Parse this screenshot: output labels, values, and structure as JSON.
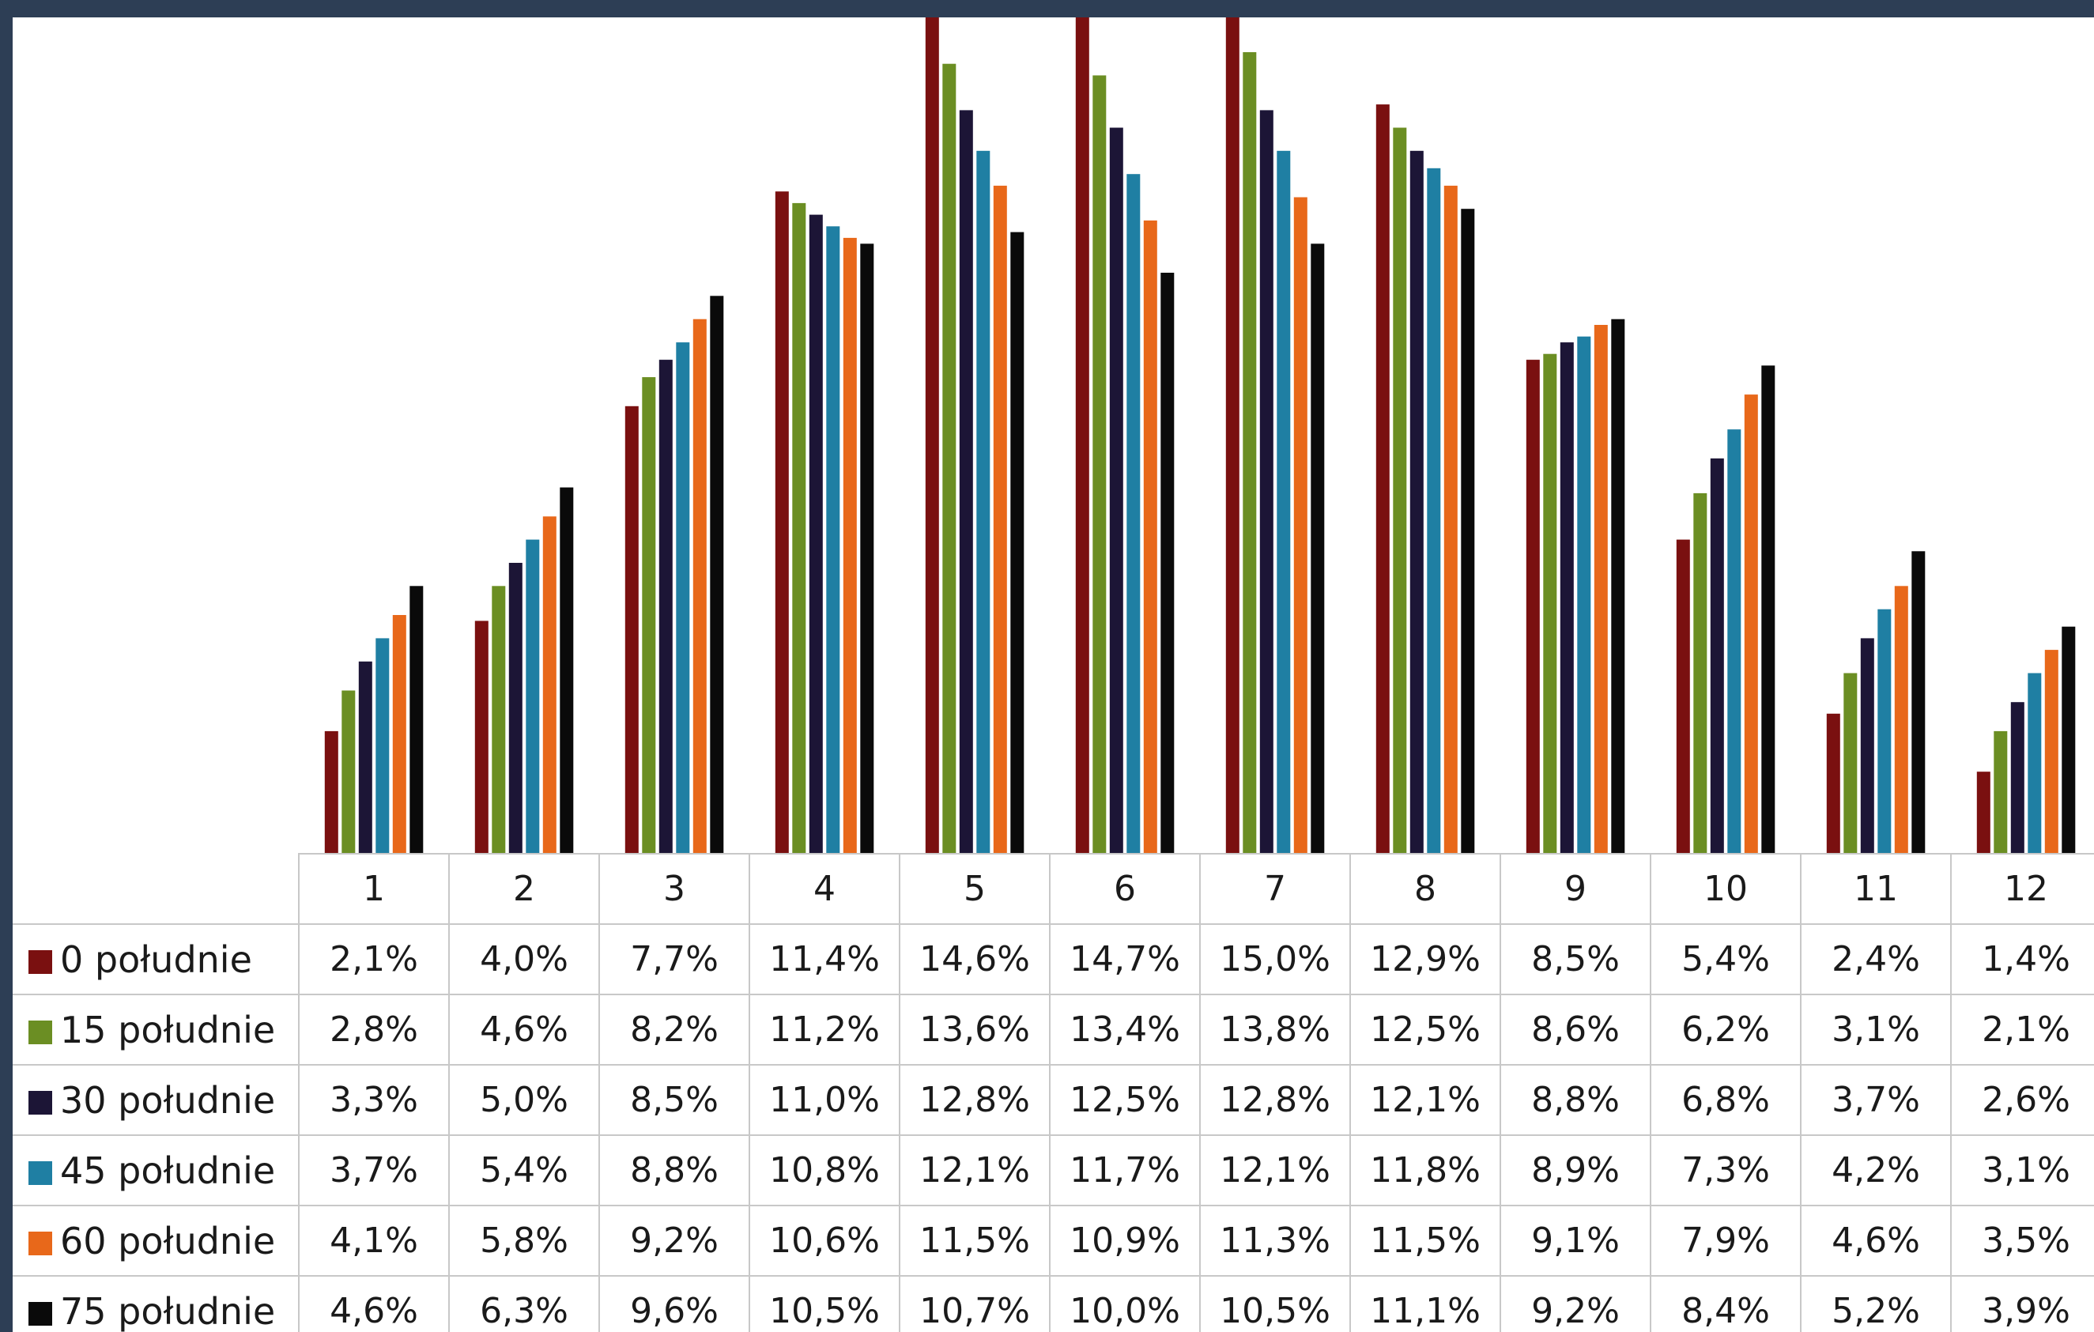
{
  "chart_data": {
    "type": "bar",
    "categories": [
      "1",
      "2",
      "3",
      "4",
      "5",
      "6",
      "7",
      "8",
      "9",
      "10",
      "11",
      "12"
    ],
    "series": [
      {
        "name": "0 południe",
        "color": "#7a1010",
        "values": [
          2.1,
          4.0,
          7.7,
          11.4,
          14.6,
          14.7,
          15.0,
          12.9,
          8.5,
          5.4,
          2.4,
          1.4
        ],
        "labels": [
          "2,1%",
          "4,0%",
          "7,7%",
          "11,4%",
          "14,6%",
          "14,7%",
          "15,0%",
          "12,9%",
          "8,5%",
          "5,4%",
          "2,4%",
          "1,4%"
        ]
      },
      {
        "name": "15 południe",
        "color": "#6b8e23",
        "values": [
          2.8,
          4.6,
          8.2,
          11.2,
          13.6,
          13.4,
          13.8,
          12.5,
          8.6,
          6.2,
          3.1,
          2.1
        ],
        "labels": [
          "2,8%",
          "4,6%",
          "8,2%",
          "11,2%",
          "13,6%",
          "13,4%",
          "13,8%",
          "12,5%",
          "8,6%",
          "6,2%",
          "3,1%",
          "2,1%"
        ]
      },
      {
        "name": "30 południe",
        "color": "#1c1536",
        "values": [
          3.3,
          5.0,
          8.5,
          11.0,
          12.8,
          12.5,
          12.8,
          12.1,
          8.8,
          6.8,
          3.7,
          2.6
        ],
        "labels": [
          "3,3%",
          "5,0%",
          "8,5%",
          "11,0%",
          "12,8%",
          "12,5%",
          "12,8%",
          "12,1%",
          "8,8%",
          "6,8%",
          "3,7%",
          "2,6%"
        ]
      },
      {
        "name": "45 południe",
        "color": "#1f7fa3",
        "values": [
          3.7,
          5.4,
          8.8,
          10.8,
          12.1,
          11.7,
          12.1,
          11.8,
          8.9,
          7.3,
          4.2,
          3.1
        ],
        "labels": [
          "3,7%",
          "5,4%",
          "8,8%",
          "10,8%",
          "12,1%",
          "11,7%",
          "12,1%",
          "11,8%",
          "8,9%",
          "7,3%",
          "4,2%",
          "3,1%"
        ]
      },
      {
        "name": "60 południe",
        "color": "#e8681a",
        "values": [
          4.1,
          5.8,
          9.2,
          10.6,
          11.5,
          10.9,
          11.3,
          11.5,
          9.1,
          7.9,
          4.6,
          3.5
        ],
        "labels": [
          "4,1%",
          "5,8%",
          "9,2%",
          "10,6%",
          "11,5%",
          "10,9%",
          "11,3%",
          "11,5%",
          "9,1%",
          "7,9%",
          "4,6%",
          "3,5%"
        ]
      },
      {
        "name": "75 południe",
        "color": "#0a0a0a",
        "values": [
          4.6,
          6.3,
          9.6,
          10.5,
          10.7,
          10.0,
          10.5,
          11.1,
          9.2,
          8.4,
          5.2,
          3.9
        ],
        "labels": [
          "4,6%",
          "6,3%",
          "9,6%",
          "10,5%",
          "10,7%",
          "10,0%",
          "10,5%",
          "11,1%",
          "9,2%",
          "8,4%",
          "5,2%",
          "3,9%"
        ]
      }
    ],
    "title": "",
    "xlabel": "",
    "ylabel": "",
    "ylim": [
      0,
      14.4
    ],
    "grid": false,
    "legend": "table"
  }
}
